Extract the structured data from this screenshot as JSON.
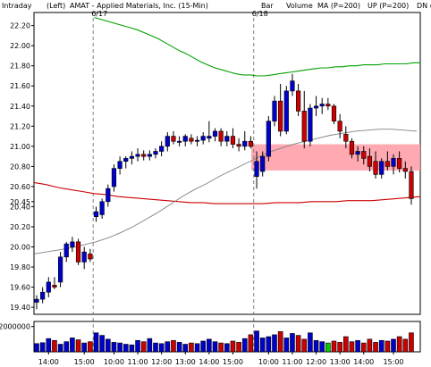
{
  "header": {
    "interval": "Intraday",
    "scale": "(Left)",
    "symbol_title": "AMAT - Applied Materials, Inc. (15-Min)",
    "legend": [
      {
        "label": "Bar",
        "color": "#000000"
      },
      {
        "label": "Volume",
        "color": "#00a000"
      },
      {
        "label": "MA (P=200)",
        "color": "#cc0000"
      },
      {
        "label": "UP (P=200)",
        "color": "#00a000"
      },
      {
        "label": "DN (",
        "color": "#0000cc"
      }
    ]
  },
  "chart_data": {
    "type": "candlestick",
    "symbol": "AMAT",
    "interval": "15-Min",
    "price_ylim": [
      19.33,
      22.33
    ],
    "price_ticks": [
      "22.20",
      "22.00",
      "21.80",
      "21.60",
      "21.40",
      "21.20",
      "21.00",
      "20.80",
      "20.60",
      "20.45",
      "20.40",
      "20.20",
      "20.00",
      "19.80",
      "19.60",
      "19.40"
    ],
    "volume_ylim": [
      0,
      2400000
    ],
    "volume_ticks": [
      "2000000"
    ],
    "time_labels": [
      "14:00",
      "15:00",
      "10:00",
      "11:00",
      "12:00",
      "13:00",
      "14:00",
      "15:00",
      "10:00",
      "11:00",
      "12:00",
      "13:00",
      "14:00",
      "15:00"
    ],
    "session_breaks": [
      {
        "label": "6/17",
        "bar_index": 10
      },
      {
        "label": "6/18",
        "bar_index": 37
      }
    ],
    "candles": [
      [
        19.45,
        19.52,
        19.38,
        19.48
      ],
      [
        19.48,
        19.6,
        19.44,
        19.55
      ],
      [
        19.55,
        19.7,
        19.5,
        19.65
      ],
      [
        19.62,
        19.7,
        19.58,
        19.6
      ],
      [
        19.65,
        19.95,
        19.6,
        19.9
      ],
      [
        19.9,
        20.05,
        19.85,
        20.03
      ],
      [
        20.0,
        20.1,
        19.95,
        20.05
      ],
      [
        20.05,
        20.08,
        19.82,
        19.85
      ],
      [
        19.85,
        20.0,
        19.78,
        19.95
      ],
      [
        19.93,
        19.98,
        19.85,
        19.88
      ],
      [
        20.3,
        20.4,
        20.25,
        20.35
      ],
      [
        20.32,
        20.48,
        20.28,
        20.45
      ],
      [
        20.45,
        20.62,
        20.4,
        20.58
      ],
      [
        20.6,
        20.82,
        20.55,
        20.78
      ],
      [
        20.78,
        20.9,
        20.72,
        20.85
      ],
      [
        20.85,
        20.9,
        20.78,
        20.88
      ],
      [
        20.88,
        20.95,
        20.82,
        20.9
      ],
      [
        20.9,
        20.98,
        20.85,
        20.92
      ],
      [
        20.92,
        20.96,
        20.86,
        20.9
      ],
      [
        20.9,
        20.96,
        20.86,
        20.92
      ],
      [
        20.92,
        20.98,
        20.88,
        20.95
      ],
      [
        20.95,
        21.05,
        20.9,
        21.0
      ],
      [
        21.0,
        21.14,
        20.95,
        21.1
      ],
      [
        21.1,
        21.15,
        21.02,
        21.05
      ],
      [
        21.04,
        21.1,
        21.0,
        21.05
      ],
      [
        21.05,
        21.12,
        21.0,
        21.1
      ],
      [
        21.08,
        21.12,
        21.02,
        21.05
      ],
      [
        21.05,
        21.1,
        21.0,
        21.06
      ],
      [
        21.06,
        21.14,
        21.02,
        21.1
      ],
      [
        21.08,
        21.25,
        21.04,
        21.1
      ],
      [
        21.1,
        21.18,
        21.05,
        21.15
      ],
      [
        21.15,
        21.18,
        21.0,
        21.05
      ],
      [
        21.05,
        21.15,
        21.0,
        21.1
      ],
      [
        21.1,
        21.18,
        20.98,
        21.02
      ],
      [
        21.02,
        21.08,
        20.95,
        21.0
      ],
      [
        21.0,
        21.15,
        20.96,
        21.05
      ],
      [
        21.05,
        21.1,
        20.98,
        21.0
      ],
      [
        20.7,
        20.95,
        20.58,
        20.85
      ],
      [
        20.75,
        20.95,
        20.7,
        20.9
      ],
      [
        20.9,
        21.3,
        20.85,
        21.25
      ],
      [
        21.25,
        21.5,
        21.2,
        21.45
      ],
      [
        21.45,
        21.62,
        21.1,
        21.15
      ],
      [
        21.15,
        21.6,
        21.12,
        21.55
      ],
      [
        21.55,
        21.72,
        21.5,
        21.65
      ],
      [
        21.55,
        21.62,
        21.3,
        21.35
      ],
      [
        21.35,
        21.55,
        20.98,
        21.05
      ],
      [
        21.05,
        21.42,
        21.0,
        21.38
      ],
      [
        21.38,
        21.5,
        21.3,
        21.4
      ],
      [
        21.4,
        21.48,
        21.32,
        21.42
      ],
      [
        21.42,
        21.48,
        21.36,
        21.4
      ],
      [
        21.4,
        21.42,
        21.22,
        21.25
      ],
      [
        21.25,
        21.32,
        21.08,
        21.15
      ],
      [
        21.12,
        21.2,
        20.98,
        21.05
      ],
      [
        21.05,
        21.08,
        20.88,
        20.92
      ],
      [
        20.92,
        21.0,
        20.85,
        20.95
      ],
      [
        20.95,
        21.0,
        20.82,
        20.88
      ],
      [
        20.9,
        20.98,
        20.75,
        20.8
      ],
      [
        20.85,
        20.95,
        20.68,
        20.72
      ],
      [
        20.72,
        20.88,
        20.68,
        20.85
      ],
      [
        20.85,
        20.95,
        20.76,
        20.8
      ],
      [
        20.8,
        20.92,
        20.72,
        20.88
      ],
      [
        20.88,
        20.95,
        20.74,
        20.78
      ],
      [
        20.78,
        20.85,
        20.68,
        20.75
      ],
      [
        20.75,
        20.8,
        20.42,
        20.48
      ]
    ],
    "volume": [
      650000,
      720000,
      1050000,
      900000,
      600000,
      800000,
      1100000,
      950000,
      700000,
      800000,
      1500000,
      1300000,
      1000000,
      750000,
      700000,
      600000,
      550000,
      900000,
      800000,
      1050000,
      700000,
      650000,
      800000,
      900000,
      750000,
      600000,
      700000,
      650000,
      850000,
      1000000,
      800000,
      700000,
      650000,
      850000,
      750000,
      1050000,
      1350000,
      1650000,
      1100000,
      1200000,
      1350000,
      1600000,
      1100000,
      1450000,
      1300000,
      1000000,
      1500000,
      900000,
      800000,
      700000,
      850000,
      750000,
      1200000,
      800000,
      900000,
      700000,
      1000000,
      750000,
      900000,
      850000,
      1000000,
      1200000,
      1000000,
      1500000
    ],
    "volume_up_color": "#0000cc",
    "volume_down_color": "#cc0000",
    "volume_highlight_index": 49,
    "volume_highlight_color": "#00cc00",
    "up_band": [
      22.28,
      22.26,
      22.24,
      22.22,
      22.2,
      22.18,
      22.16,
      22.13,
      22.1,
      22.07,
      22.03,
      21.99,
      21.95,
      21.92,
      21.88,
      21.84,
      21.81,
      21.78,
      21.76,
      21.74,
      21.72,
      21.71,
      21.71,
      21.7,
      21.7,
      21.71,
      21.72,
      21.73,
      21.74,
      21.75,
      21.76,
      21.77,
      21.78,
      21.78,
      21.79,
      21.79,
      21.8,
      21.8,
      21.81,
      21.81,
      21.81,
      21.82,
      21.82,
      21.82,
      21.82,
      21.83,
      21.83
    ],
    "dn_band": [
      19.93,
      19.95,
      19.97,
      19.99,
      20.02,
      20.05,
      20.09,
      20.14,
      20.2,
      20.27,
      20.34,
      20.42,
      20.5,
      20.57,
      20.63,
      20.7,
      20.76,
      20.82,
      20.88,
      20.94,
      20.98,
      21.02,
      21.05,
      21.08,
      21.11,
      21.13,
      21.15,
      21.16,
      21.17,
      21.17,
      21.16,
      21.15
    ],
    "ma200": [
      20.64,
      20.62,
      20.59,
      20.57,
      20.55,
      20.53,
      20.52,
      20.5,
      20.49,
      20.48,
      20.47,
      20.46,
      20.45,
      20.44,
      20.44,
      20.43,
      20.43,
      20.43,
      20.43,
      20.43,
      20.44,
      20.44,
      20.44,
      20.45,
      20.45,
      20.45,
      20.46,
      20.46,
      20.46,
      20.47,
      20.48,
      20.49,
      20.5
    ],
    "resistance_zone": [
      20.76,
      21.02
    ],
    "zone_start_bar": 37,
    "colors": {
      "up_candle": "#0000cc",
      "down_candle": "#cc0000",
      "ma": "#cc0000",
      "up_band": "#00a000",
      "dn_band": "#808080",
      "zone": "#ff9aa4",
      "separator": "#808080"
    }
  }
}
